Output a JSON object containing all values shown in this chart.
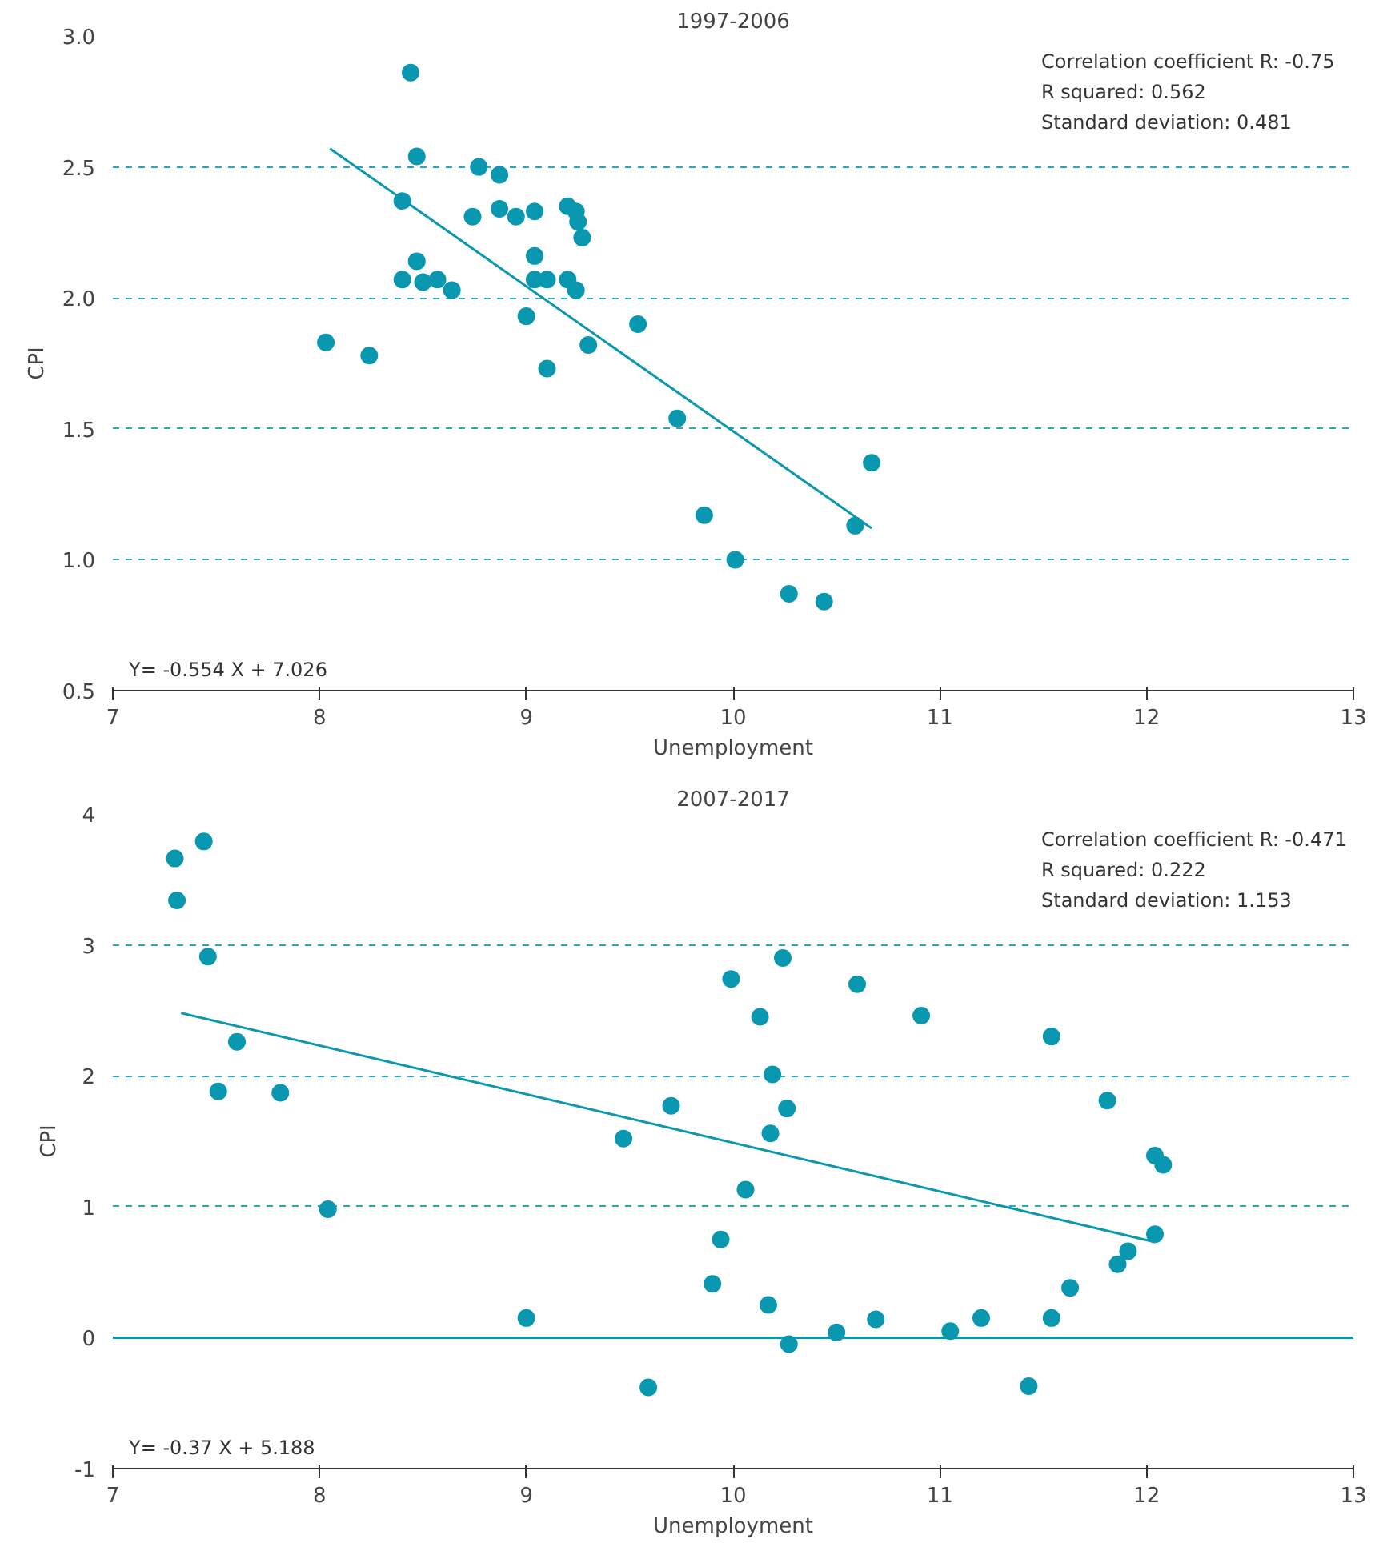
{
  "chart_data": [
    {
      "type": "scatter",
      "title": "1997-2006",
      "xlabel": "Unemployment",
      "ylabel": "CPI",
      "xlim": [
        7,
        13
      ],
      "xticks": [
        7,
        8,
        9,
        10,
        11,
        12,
        13
      ],
      "ylim": [
        0.5,
        3.0
      ],
      "yticks": [
        0.5,
        {
          "value": 1,
          "label": "1.0"
        },
        1.5,
        {
          "value": 2,
          "label": "2.0"
        },
        2.5,
        {
          "value": 3,
          "label": "3.0"
        }
      ],
      "grid": "y",
      "annotations": [
        "Correlation coefficient R: -0.75",
        "R squared: 0.562",
        "Standard deviation: 0.481",
        "Y= -0.554 X + 7.026"
      ],
      "series": [
        {
          "type": "scatter",
          "marker": "circle",
          "color": "#0a97b0",
          "x": [
            8.03,
            8.24,
            8.44,
            8.47,
            8.4,
            8.4,
            8.47,
            8.5,
            8.57,
            8.64,
            8.74,
            8.77,
            8.87,
            8.87,
            8.95,
            9.04,
            9.04,
            9.04,
            9.1,
            9.0,
            9.1,
            9.2,
            9.24,
            9.25,
            9.27,
            9.2,
            9.24,
            9.3,
            9.54,
            9.73,
            9.86,
            10.01,
            10.27,
            10.44,
            10.59,
            10.67
          ],
          "values": [
            1.83,
            1.78,
            2.86,
            2.54,
            2.37,
            2.07,
            2.14,
            2.06,
            2.07,
            2.03,
            2.31,
            2.5,
            2.47,
            2.34,
            2.31,
            2.33,
            2.16,
            2.07,
            2.07,
            1.93,
            1.73,
            2.35,
            2.33,
            2.29,
            2.23,
            2.07,
            2.03,
            1.82,
            1.9,
            1.54,
            1.17,
            1.0,
            0.87,
            0.84,
            1.13,
            1.37
          ]
        },
        {
          "type": "line",
          "color": "#0a97b0",
          "x": [
            8.05,
            10.67
          ],
          "values": [
            2.57,
            1.12
          ]
        }
      ]
    },
    {
      "type": "scatter",
      "title": "2007-2017",
      "xlabel": "Unemployment",
      "ylabel": "CPI",
      "xlim": [
        7,
        13
      ],
      "xticks": [
        7,
        8,
        9,
        10,
        11,
        12,
        13
      ],
      "ylim": [
        -1,
        4
      ],
      "yticks": [
        -1,
        0,
        1,
        2,
        3,
        4
      ],
      "grid": "y",
      "ref_lines": [
        {
          "axis": "y",
          "value": 0,
          "color": "#0a97b0",
          "line_style": "solid"
        }
      ],
      "annotations": [
        "Correlation coefficient R: -0.471",
        "R squared: 0.222",
        "Standard deviation: 1.153",
        "Y= -0.37 X + 5.188"
      ],
      "series": [
        {
          "type": "scatter",
          "marker": "circle",
          "color": "#0a97b0",
          "x": [
            7.3,
            7.31,
            7.44,
            7.46,
            7.6,
            7.51,
            7.81,
            8.04,
            9.0,
            9.47,
            9.7,
            9.59,
            9.9,
            9.94,
            9.99,
            10.06,
            10.13,
            10.17,
            10.18,
            10.19,
            10.24,
            10.26,
            10.27,
            10.5,
            10.6,
            10.69,
            10.91,
            11.05,
            11.2,
            11.43,
            11.54,
            11.54,
            11.63,
            11.81,
            11.86,
            11.91,
            12.04,
            12.04,
            12.08
          ],
          "values": [
            3.66,
            3.34,
            3.79,
            2.91,
            2.26,
            1.88,
            1.87,
            0.98,
            0.15,
            1.52,
            1.77,
            -0.38,
            0.41,
            0.75,
            2.74,
            1.13,
            2.45,
            0.25,
            1.56,
            2.01,
            2.9,
            1.75,
            -0.05,
            0.04,
            2.7,
            0.14,
            2.46,
            0.05,
            0.15,
            -0.37,
            0.15,
            2.3,
            0.38,
            1.81,
            0.56,
            0.66,
            0.79,
            1.39,
            1.32
          ]
        },
        {
          "type": "line",
          "color": "#0a97b0",
          "x": [
            7.33,
            12.04
          ],
          "values": [
            2.48,
            0.73
          ]
        }
      ]
    }
  ]
}
